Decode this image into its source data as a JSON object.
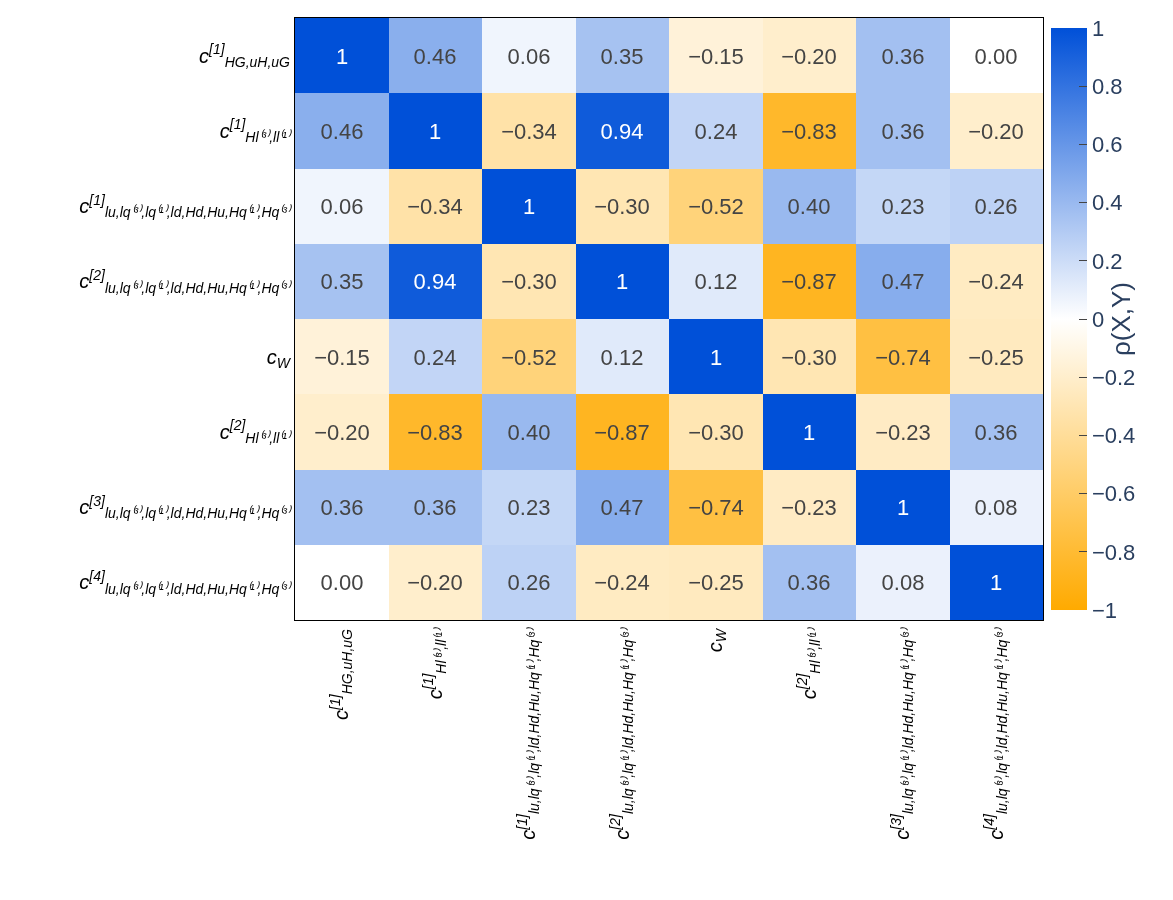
{
  "chart_data": {
    "type": "heatmap",
    "categories": [
      "c$^{[1]}$$_{HG,uH,uG}$",
      "c$^{[1]}$$_{Hl⁽³⁾,ll⁽¹⁾}$",
      "c$^{[1]}$$_{lu,lq⁽³⁾,lq⁽¹⁾,ld,Hd,Hu,Hq⁽¹⁾,Hq⁽³⁾}$",
      "c$^{[2]}$$_{lu,lq⁽³⁾,lq⁽¹⁾,ld,Hd,Hu,Hq⁽¹⁾,Hq⁽³⁾}$",
      "c$_{W}$",
      "c$^{[2]}$$_{Hl⁽³⁾,ll⁽¹⁾}$",
      "c$^{[3]}$$_{lu,lq⁽³⁾,lq⁽¹⁾,ld,Hd,Hu,Hq⁽¹⁾,Hq⁽³⁾}$",
      "c$^{[4]}$$_{lu,lq⁽³⁾,lq⁽¹⁾,ld,Hd,Hu,Hq⁽¹⁾,Hq⁽³⁾}$"
    ],
    "y_categories": [
      "c$^{[1]}$$_{HG,uH,uG}$",
      "c$^{[1]}$$_{Hl⁽³⁾,ll⁽¹⁾}$",
      "c$^{[1]}$$_{lu,lq⁽³⁾,lq⁽¹⁾,ld,Hd,Hu,Hq⁽¹⁾,Hq⁽³⁾}$",
      "c$^{[2]}$$_{lu,lq⁽³⁾,lq⁽¹⁾,ld,Hd,Hu,Hq⁽¹⁾,Hq⁽³⁾}$",
      "c$_{W}$",
      "c$^{[2]}$$_{Hl⁽³⁾,ll⁽¹⁾}$",
      "c$^{[3]}$$_{lu,lq⁽³⁾,lq⁽¹⁾,ld,Hd,Hu,Hq⁽¹⁾,Hq⁽³⁾}$",
      "c$^{[4]}$$_{lu,lq⁽³⁾,lq⁽¹⁾,ld,Hd,Hu,Hq⁽¹⁾,Hq⁽³⁾}$"
    ],
    "cells": [
      [
        1,
        0.46,
        0.06,
        0.35,
        -0.15,
        -0.2,
        0.36,
        0.0
      ],
      [
        0.46,
        1,
        -0.34,
        0.94,
        0.24,
        -0.83,
        0.36,
        -0.2
      ],
      [
        0.06,
        -0.34,
        1,
        -0.3,
        -0.52,
        0.4,
        0.23,
        0.26
      ],
      [
        0.35,
        0.94,
        -0.3,
        1,
        0.12,
        -0.87,
        0.47,
        -0.24
      ],
      [
        -0.15,
        0.24,
        -0.52,
        0.12,
        1,
        -0.3,
        -0.74,
        -0.25
      ],
      [
        -0.2,
        -0.83,
        0.4,
        -0.87,
        -0.3,
        1,
        -0.23,
        0.36
      ],
      [
        0.36,
        0.36,
        0.23,
        0.47,
        -0.74,
        -0.23,
        1,
        0.08
      ],
      [
        0.0,
        -0.2,
        0.26,
        -0.24,
        -0.25,
        0.36,
        0.08,
        1
      ]
    ],
    "cell_labels": [
      [
        "1",
        "0.46",
        "0.06",
        "0.35",
        "−0.15",
        "−0.20",
        "0.36",
        "0.00"
      ],
      [
        "0.46",
        "1",
        "−0.34",
        "0.94",
        "0.24",
        "−0.83",
        "0.36",
        "−0.20"
      ],
      [
        "0.06",
        "−0.34",
        "1",
        "−0.30",
        "−0.52",
        "0.40",
        "0.23",
        "0.26"
      ],
      [
        "0.35",
        "0.94",
        "−0.30",
        "1",
        "0.12",
        "−0.87",
        "0.47",
        "−0.24"
      ],
      [
        "−0.15",
        "0.24",
        "−0.52",
        "0.12",
        "1",
        "−0.30",
        "−0.74",
        "−0.25"
      ],
      [
        "−0.20",
        "−0.83",
        "0.40",
        "−0.87",
        "−0.30",
        "1",
        "−0.23",
        "0.36"
      ],
      [
        "0.36",
        "0.36",
        "0.23",
        "0.47",
        "−0.74",
        "−0.23",
        "1",
        "0.08"
      ],
      [
        "0.00",
        "−0.20",
        "0.26",
        "−0.24",
        "−0.25",
        "0.36",
        "0.08",
        "1"
      ]
    ],
    "clabel": "ρ(X,Y)",
    "clim": [
      -1,
      1
    ],
    "cticks": [
      1,
      0.8,
      0.6,
      0.4,
      0.2,
      0,
      {
        "value": -0.2,
        "label": "−0.2"
      },
      {
        "value": -0.4,
        "label": "−0.4"
      },
      {
        "value": -0.6,
        "label": "−0.6"
      },
      {
        "value": -0.8,
        "label": "−0.8"
      },
      {
        "value": -1,
        "label": "−1"
      }
    ]
  }
}
